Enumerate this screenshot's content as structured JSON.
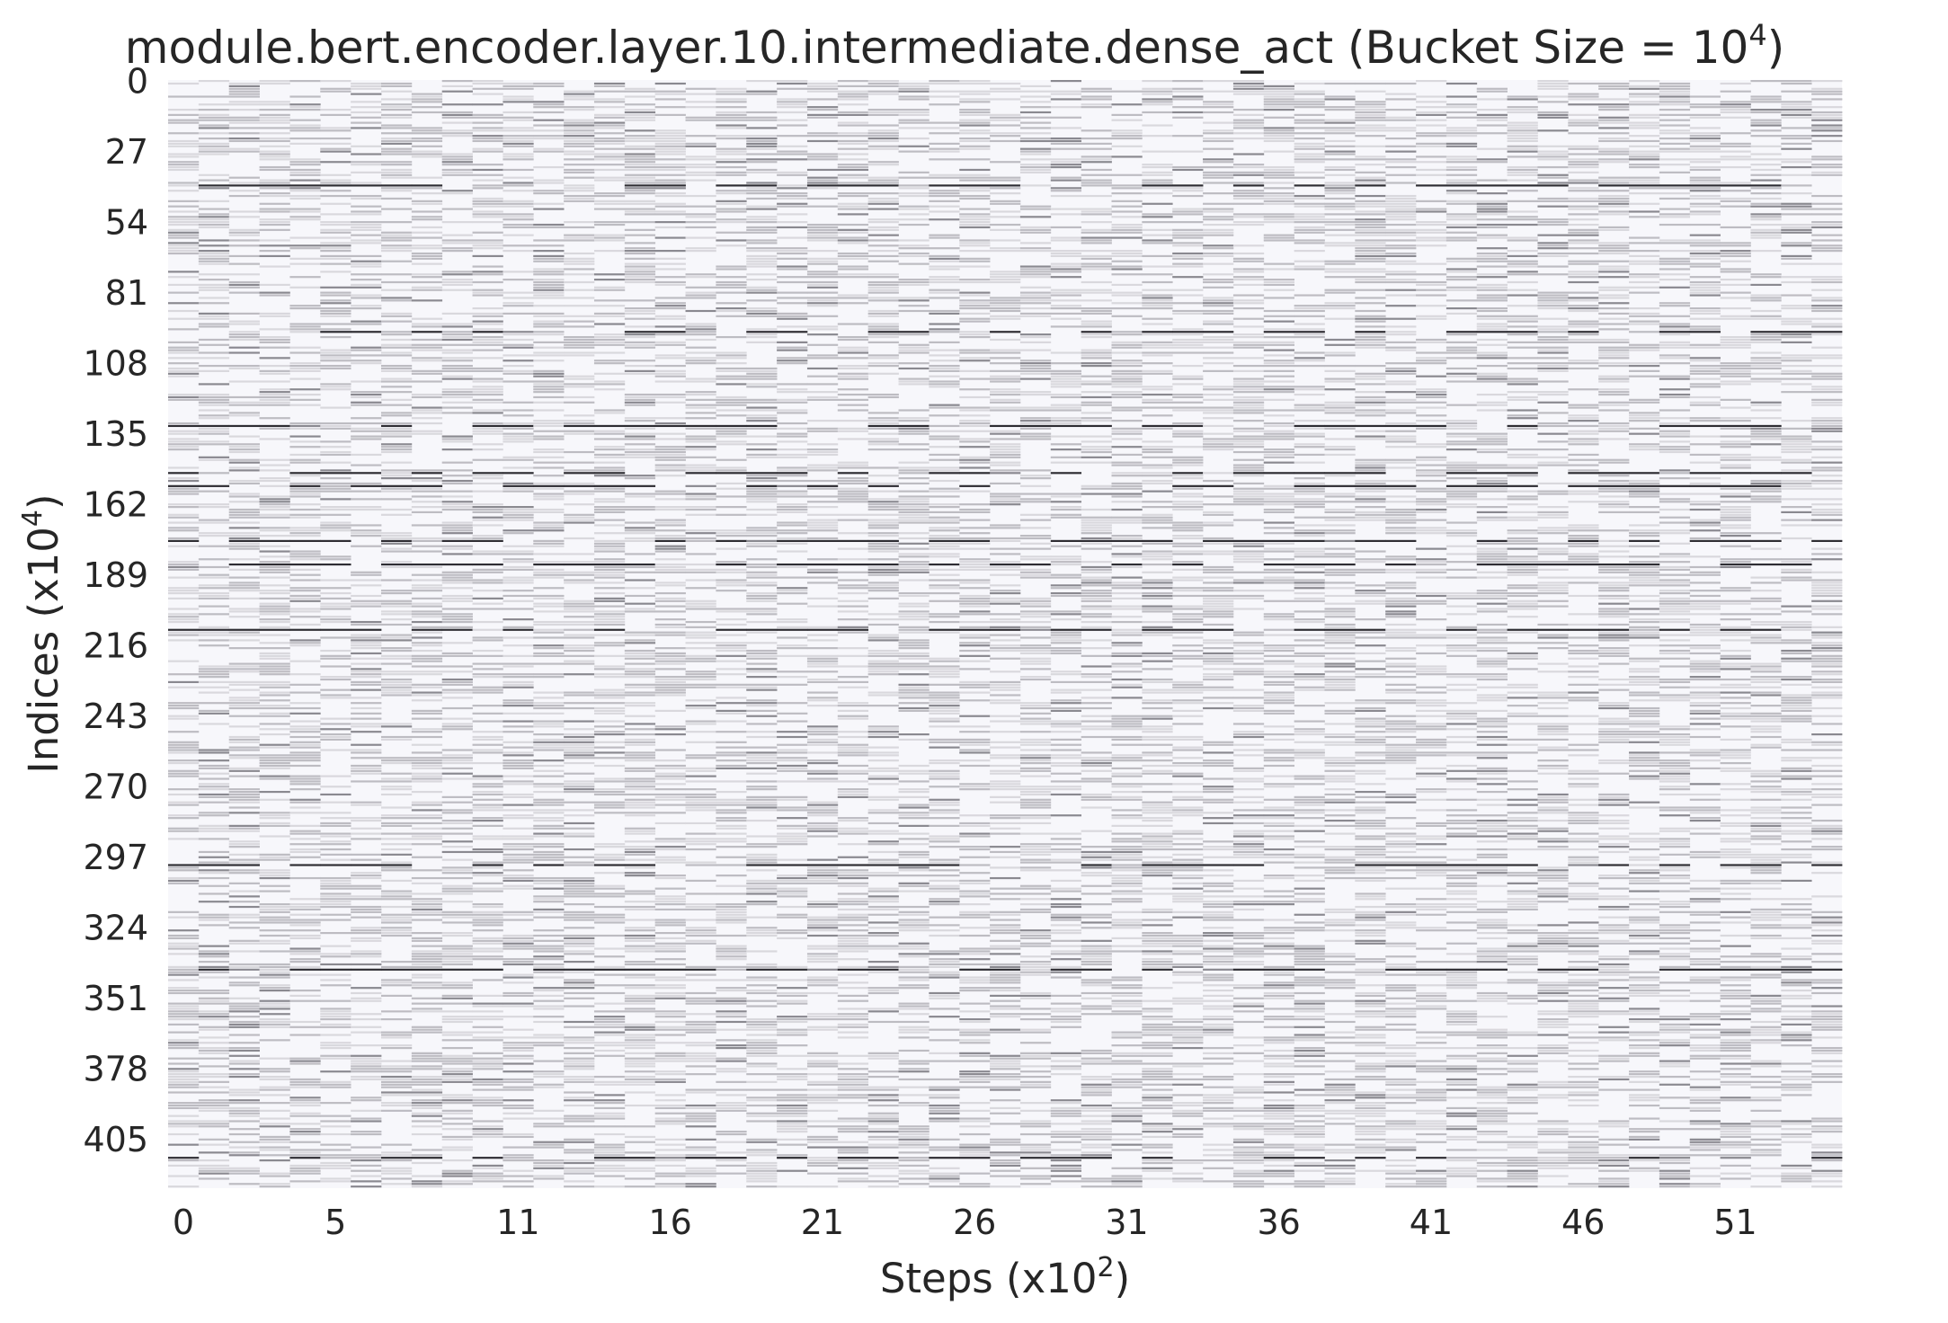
{
  "chart_data": {
    "type": "heatmap",
    "title": "module.bert.encoder.layer.10.intermediate.dense_act (Bucket Size = 10",
    "title_superscript": "4",
    "title_suffix": ")",
    "xlabel": "Steps (x10",
    "xlabel_superscript": "2",
    "xlabel_suffix": ")",
    "ylabel": "Indices (x10",
    "ylabel_superscript": "4",
    "ylabel_suffix": ")",
    "x_ticks": [
      "0",
      "5",
      "11",
      "16",
      "21",
      "26",
      "31",
      "36",
      "41",
      "46",
      "51"
    ],
    "y_ticks": [
      "0",
      "27",
      "54",
      "81",
      "108",
      "135",
      "162",
      "189",
      "216",
      "243",
      "270",
      "297",
      "324",
      "351",
      "378",
      "405"
    ],
    "x_range": [
      0,
      55
    ],
    "y_range": [
      0,
      424
    ],
    "grid": false,
    "legend": "none",
    "colormap": {
      "background": "#f7f7fb",
      "low": "#d9d8dd",
      "mid": "#bdbcc2",
      "high": "#8a8990",
      "max": "#2e2d33"
    },
    "prominent_rows": [
      40,
      96,
      132,
      150,
      155,
      176,
      185,
      210,
      300,
      340,
      412
    ]
  }
}
